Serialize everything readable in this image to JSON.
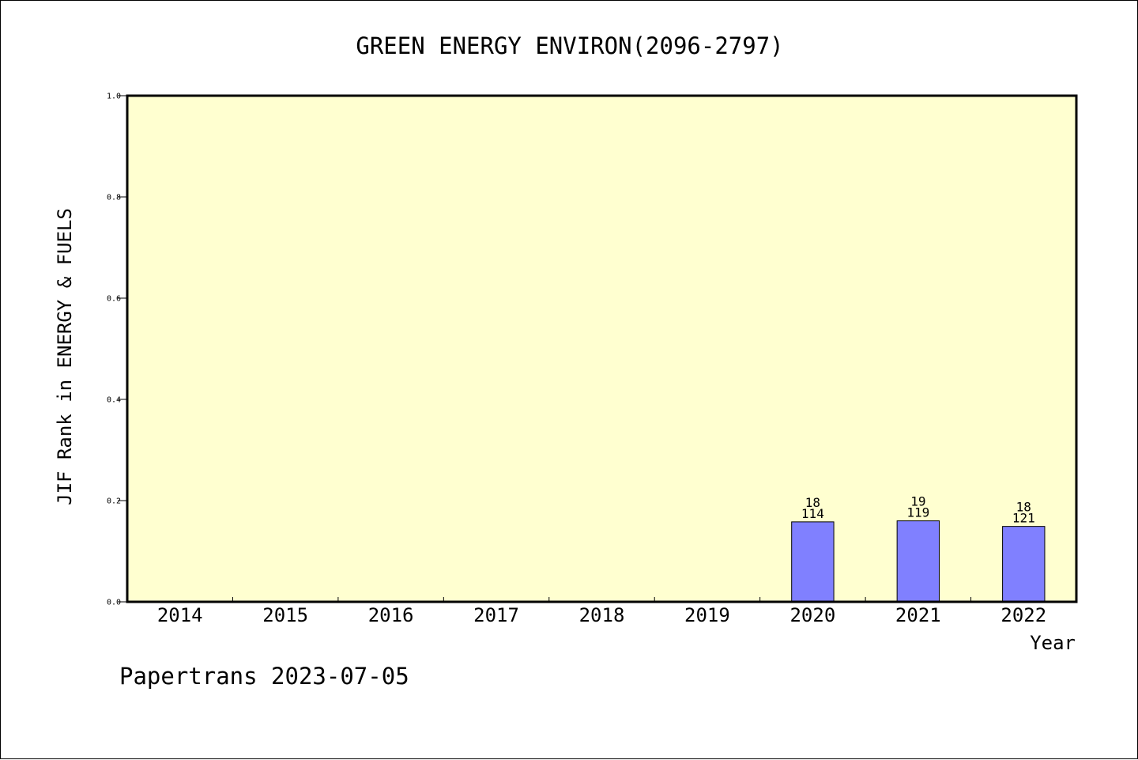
{
  "chart_data": {
    "type": "bar",
    "title": "GREEN ENERGY ENVIRON(2096-2797)",
    "xlabel": "Year",
    "ylabel": "JIF Rank in ENERGY & FUELS",
    "categories": [
      "2014",
      "2015",
      "2016",
      "2017",
      "2018",
      "2019",
      "2020",
      "2021",
      "2022"
    ],
    "values": [
      null,
      null,
      null,
      null,
      null,
      null,
      0.158,
      0.16,
      0.149
    ],
    "rank": [
      "",
      "",
      "",
      "",
      "",
      "",
      "18",
      "19",
      "18"
    ],
    "total": [
      "",
      "",
      "",
      "",
      "",
      "",
      "114",
      "119",
      "121"
    ],
    "ylim": [
      0,
      1.0
    ],
    "yticks": [
      "0.0",
      "0.2",
      "0.4",
      "0.6",
      "0.8",
      "1.0"
    ],
    "grid": false,
    "legend": "none",
    "colors": {
      "plot_bg": "#ffffd0",
      "bar": "#8080ff",
      "axis": "#000000"
    }
  },
  "footer": "Papertrans 2023-07-05"
}
